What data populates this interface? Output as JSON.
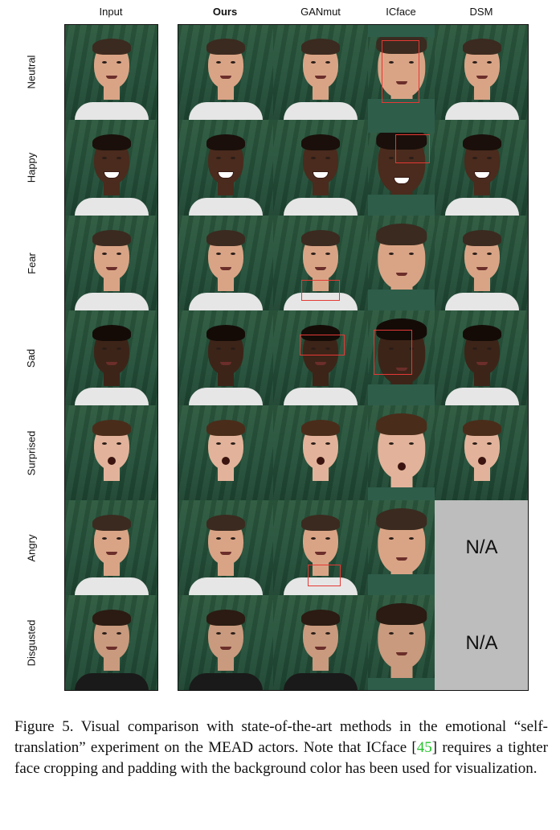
{
  "columns": [
    "Input",
    "Ours",
    "GANmut",
    "ICface",
    "DSM"
  ],
  "rows": [
    "Neutral",
    "Happy",
    "Fear",
    "Sad",
    "Surprised",
    "Angry",
    "Disgusted"
  ],
  "na_label": "N/A",
  "caption": {
    "prefix": "Figure 5.  Visual comparison with state-of-the-art methods in the emotional “self-translation” experiment on the MEAD actors. Note that ICface [",
    "ref": "45",
    "suffix": "] requires a tighter face cropping and padding with the background color has been used for visualization."
  },
  "colors": {
    "background_green": "#2e5d4a",
    "highlight_box": "#e53935",
    "na_panel": "#bdbdbd",
    "citation": "#22c42b"
  }
}
